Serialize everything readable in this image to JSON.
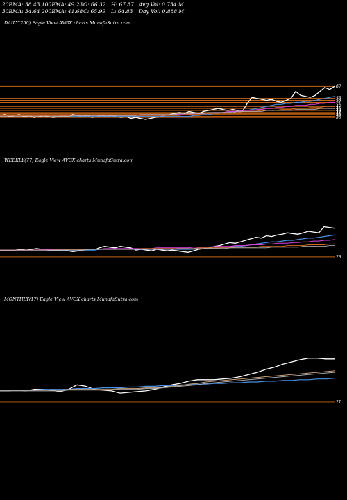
{
  "header": {
    "row1": [
      "20EMA: 38.43",
      "100EMA: 49.23",
      "O: 66.32",
      "H: 67.87",
      "Avg Vol: 0.734  M"
    ],
    "row2": [
      "30EMA: 34.64",
      "200EMA: 41.68",
      "C: 65.99",
      "L: 64.83",
      "Day Vol: 0.888  M"
    ]
  },
  "colors": {
    "background": "#000000",
    "price": "#ffffff",
    "ema_orange": "#d2691e",
    "ema_blue": "#4a8fe0",
    "ema_magenta": "#e040e0",
    "support": "#c86414"
  },
  "chart_data": [
    {
      "type": "line",
      "title": "DAILY(250) Eagle  View  AVGX  charts MunafaSutra.com",
      "y_tick_labels": [
        "67",
        "55",
        "53",
        "51",
        "47",
        "45",
        "43",
        "41",
        "40",
        "39",
        "37",
        "36"
      ],
      "series": [
        {
          "values": [
            38,
            39,
            37,
            38,
            39,
            37,
            38,
            36,
            37,
            38,
            37,
            36,
            37,
            38,
            37,
            39,
            38,
            37,
            38,
            36,
            37,
            38,
            37,
            38,
            37,
            36,
            37,
            35,
            36,
            35,
            34,
            35,
            36,
            37,
            38,
            39,
            40,
            41,
            40,
            42,
            41,
            40,
            42,
            43,
            44,
            45,
            44,
            43,
            44,
            43,
            42,
            50,
            56,
            55,
            54,
            53,
            54,
            52,
            51,
            53,
            55,
            62,
            58,
            57,
            56,
            58,
            62,
            66,
            64,
            67
          ]
        },
        {
          "values": [
            38,
            38,
            38,
            38,
            38,
            38,
            38,
            38,
            38,
            38,
            38,
            38,
            37,
            37,
            37,
            37,
            37,
            37,
            37,
            37,
            37,
            37,
            37,
            37,
            37,
            37,
            37,
            37,
            37,
            37,
            37,
            37,
            37,
            37,
            37,
            37,
            37,
            37,
            37,
            37,
            38,
            38,
            39,
            39,
            40,
            40,
            41,
            41,
            42,
            42,
            43,
            43,
            44,
            45,
            46,
            47,
            48,
            49,
            49,
            50,
            50,
            51,
            51,
            52,
            52,
            53,
            54,
            55,
            56,
            57
          ]
        },
        {
          "values": [
            38,
            38,
            38,
            38,
            38,
            38,
            38,
            38,
            38,
            38,
            38,
            38,
            38,
            38,
            38,
            38,
            38,
            38,
            38,
            38,
            38,
            38,
            38,
            38,
            38,
            38,
            38,
            38,
            38,
            38,
            38,
            38,
            38,
            38,
            38,
            39,
            39,
            39,
            39,
            39,
            40,
            40,
            40,
            40,
            41,
            41,
            41,
            42,
            42,
            42,
            43,
            43,
            43,
            44,
            44,
            45,
            45,
            46,
            46,
            47,
            47,
            48,
            48,
            48,
            49,
            49,
            50,
            50,
            51,
            51
          ]
        },
        {
          "values": [
            38,
            38,
            38,
            38,
            38,
            38,
            38,
            38,
            38,
            38,
            38,
            38,
            38,
            38,
            38,
            38,
            38,
            38,
            38,
            38,
            38,
            38,
            38,
            38,
            38,
            38,
            38,
            38,
            38,
            38,
            38,
            38,
            38,
            38,
            38,
            38,
            38,
            38,
            39,
            39,
            39,
            39,
            40,
            40,
            40,
            40,
            41,
            41,
            41,
            41,
            42,
            42,
            42,
            42,
            43,
            43,
            43,
            43,
            44,
            44,
            44,
            45,
            45,
            45,
            46,
            46,
            46,
            47,
            47,
            47
          ]
        },
        {
          "values": [
            37,
            37,
            37,
            37,
            37,
            37,
            37,
            37,
            37,
            37,
            37,
            37,
            37,
            37,
            37,
            38,
            38,
            38,
            38,
            38,
            38,
            38,
            38,
            38,
            38,
            38,
            38,
            38,
            38,
            39,
            39,
            39,
            39,
            39,
            39,
            39,
            39,
            40,
            40,
            40,
            40,
            40,
            40,
            41,
            41,
            41,
            41,
            41,
            41,
            42,
            42,
            42,
            42,
            42,
            42,
            43,
            43,
            43,
            43,
            43,
            43,
            44,
            44,
            44,
            44,
            44,
            45,
            45,
            45,
            45
          ]
        }
      ],
      "support_levels": [
        67,
        55,
        53,
        51,
        47,
        45,
        43,
        41,
        40,
        39,
        37,
        36
      ],
      "ylim": [
        34,
        70
      ]
    },
    {
      "type": "line",
      "title": "WEEKLY(77) Eagle  View  AVGX  charts MunafaSutra.com",
      "y_tick_labels": [
        "28"
      ],
      "series": [
        {
          "values": [
            36,
            37,
            36,
            37,
            38,
            37,
            38,
            39,
            38,
            37,
            36,
            36,
            37,
            36,
            35,
            36,
            37,
            38,
            37,
            40,
            42,
            41,
            40,
            42,
            41,
            40,
            37,
            38,
            37,
            36,
            38,
            37,
            36,
            37,
            36,
            35,
            34,
            36,
            38,
            39,
            40,
            42,
            43,
            45,
            47,
            46,
            48,
            50,
            52,
            54,
            53,
            56,
            55,
            57,
            58,
            60,
            59,
            58,
            60,
            62,
            61,
            60,
            68,
            67,
            66
          ]
        },
        {
          "values": [
            37,
            37,
            37,
            37,
            37,
            37,
            37,
            37,
            37,
            37,
            37,
            37,
            37,
            37,
            37,
            37,
            37,
            37,
            37,
            38,
            38,
            38,
            38,
            38,
            38,
            38,
            38,
            38,
            38,
            38,
            38,
            38,
            38,
            38,
            38,
            38,
            38,
            38,
            39,
            39,
            39,
            40,
            40,
            41,
            41,
            42,
            42,
            43,
            44,
            45,
            46,
            47,
            48,
            48,
            49,
            50,
            50,
            51,
            52,
            53,
            53,
            54,
            55,
            56,
            57
          ]
        },
        {
          "values": [
            37,
            37,
            37,
            37,
            37,
            37,
            37,
            37,
            38,
            38,
            38,
            38,
            38,
            38,
            38,
            38,
            38,
            38,
            38,
            38,
            39,
            39,
            39,
            39,
            39,
            39,
            39,
            39,
            39,
            39,
            40,
            40,
            40,
            40,
            40,
            40,
            40,
            41,
            41,
            41,
            41,
            42,
            42,
            42,
            42,
            43,
            43,
            43,
            44,
            44,
            44,
            45,
            45,
            46,
            46,
            46,
            47,
            47,
            48,
            48,
            49,
            49,
            50,
            50,
            51
          ]
        },
        {
          "values": [
            37,
            37,
            37,
            37,
            37,
            37,
            37,
            37,
            37,
            37,
            37,
            38,
            38,
            38,
            38,
            38,
            38,
            38,
            38,
            38,
            38,
            38,
            38,
            38,
            38,
            38,
            38,
            39,
            39,
            39,
            39,
            39,
            39,
            39,
            39,
            39,
            39,
            39,
            40,
            40,
            40,
            40,
            40,
            40,
            40,
            41,
            41,
            41,
            41,
            41,
            42,
            42,
            42,
            42,
            42,
            43,
            43,
            43,
            43,
            44,
            44,
            44,
            44,
            45,
            45
          ]
        },
        {
          "values": [
            37,
            37,
            37,
            37,
            37,
            37,
            37,
            37,
            37,
            37,
            37,
            37,
            37,
            37,
            37,
            37,
            37,
            38,
            38,
            38,
            38,
            38,
            38,
            38,
            38,
            38,
            38,
            38,
            38,
            38,
            38,
            38,
            38,
            38,
            39,
            39,
            39,
            39,
            39,
            39,
            39,
            39,
            39,
            39,
            40,
            40,
            40,
            40,
            40,
            40,
            40,
            40,
            41,
            41,
            41,
            41,
            41,
            41,
            42,
            42,
            42,
            42,
            42,
            43,
            43
          ]
        }
      ],
      "support_levels": [
        28
      ],
      "ylim": [
        26,
        74
      ]
    },
    {
      "type": "line",
      "title": "MONTHLY(17) Eagle  View  AVGX  charts MunafaSutra.com",
      "y_tick_labels": [
        "21"
      ],
      "series": [
        {
          "values": [
            36,
            36,
            37,
            36,
            38,
            38,
            37,
            35,
            38,
            44,
            42,
            38,
            37,
            36,
            33,
            34,
            35,
            36,
            38,
            41,
            44,
            46,
            49,
            51,
            51,
            51,
            52,
            53,
            55,
            58,
            61,
            65,
            68,
            72,
            75,
            78,
            80,
            80,
            79,
            79
          ]
        },
        {
          "values": [
            37,
            37,
            37,
            37,
            37,
            38,
            38,
            38,
            38,
            39,
            39,
            39,
            40,
            40,
            40,
            41,
            41,
            42,
            42,
            43,
            43,
            44,
            44,
            45,
            45,
            46,
            46,
            47,
            47,
            48,
            48,
            49,
            49,
            50,
            50,
            51,
            51,
            52,
            52,
            53
          ]
        },
        {
          "values": [
            37,
            37,
            37,
            37,
            37,
            37,
            37,
            37,
            38,
            38,
            38,
            38,
            38,
            38,
            39,
            39,
            39,
            40,
            40,
            41,
            42,
            43,
            45,
            46,
            48,
            49,
            50,
            51,
            52,
            53,
            54,
            55,
            56,
            57,
            58,
            59,
            60,
            61,
            62,
            63
          ]
        },
        {
          "values": [
            36,
            36,
            36,
            36,
            36,
            36,
            36,
            36,
            37,
            37,
            37,
            37,
            37,
            37,
            38,
            38,
            38,
            39,
            39,
            40,
            41,
            42,
            43,
            44,
            46,
            47,
            48,
            49,
            50,
            51,
            52,
            53,
            54,
            55,
            56,
            57,
            58,
            59,
            60,
            61
          ]
        }
      ],
      "support_levels": [
        21
      ],
      "ylim": [
        20,
        90
      ]
    }
  ]
}
